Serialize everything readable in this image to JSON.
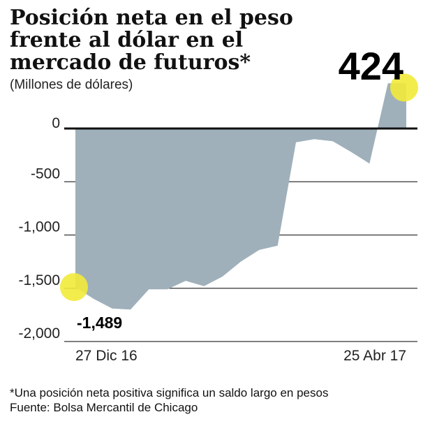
{
  "title": "Posición neta en el peso frente al dólar en el mercado de futuros*",
  "subtitle": "(Millones de dólares)",
  "footnote": "*Una posición neta positiva significa un saldo largo en pesos",
  "source": "Fuente: Bolsa Mercantil de Chicago",
  "colors": {
    "area": "#9fb0ba",
    "highlight": "#f2ea3a",
    "zero_line": "#111111",
    "grid": "#333333"
  },
  "chart_data": {
    "type": "area",
    "title": "Posición neta en el peso frente al dólar en el mercado de futuros*",
    "ylabel": "(Millones de dólares)",
    "xlabel": "",
    "ylim": [
      -2000,
      424
    ],
    "y_ticks": [
      0,
      -500,
      -1000,
      -1500,
      -2000
    ],
    "y_tick_labels": [
      "0",
      "-500",
      "-1,000",
      "-1,500",
      "-2,000"
    ],
    "x_tick_labels": [
      "27 Dic 16",
      "25 Abr 17"
    ],
    "grid": true,
    "series": [
      {
        "values": [
          -1489,
          -1600,
          -1690,
          -1700,
          -1510,
          -1510,
          -1430,
          -1480,
          -1390,
          -1250,
          -1140,
          -1100,
          -130,
          -100,
          -120,
          -220,
          -330,
          424,
          424
        ]
      }
    ],
    "annotations": [
      {
        "label": "424",
        "value": 424,
        "point": "last"
      },
      {
        "label": "-1,489",
        "value": -1489,
        "point": "first"
      }
    ]
  }
}
